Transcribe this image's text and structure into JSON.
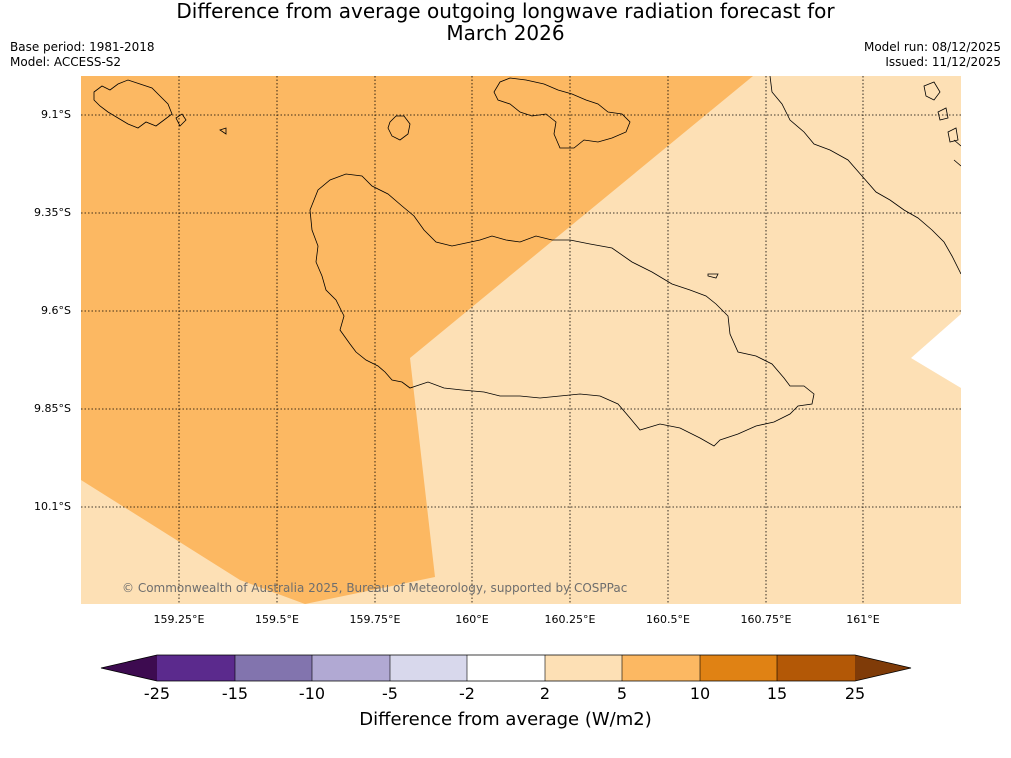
{
  "header": {
    "title_line1": "Difference from average outgoing longwave radiation forecast for",
    "title_line2": "March 2026",
    "base_period": "Base period: 1981-2018",
    "model": "Model: ACCESS-S2",
    "model_run": "Model run: 08/12/2025",
    "issued": "Issued: 11/12/2025"
  },
  "map": {
    "lat_labels": [
      "9.1°S",
      "9.35°S",
      "9.6°S",
      "9.85°S",
      "10.1°S"
    ],
    "lon_labels": [
      "159.25°E",
      "159.5°E",
      "159.75°E",
      "160°E",
      "160.25°E",
      "160.5°E",
      "160.75°E",
      "161°E"
    ],
    "credit": "© Commonwealth of Australia 2025, Bureau of Meteorology, supported by COSPPac",
    "colors": {
      "band_5_10": "#fcb862",
      "band_2_5": "#fde0b5",
      "band_neg2_2": "#ffffff",
      "coastline": "#000000"
    }
  },
  "colorbar": {
    "title": "Difference from average (W/m2)",
    "tick_labels": [
      "-25",
      "-15",
      "-10",
      "-5",
      "-2",
      "2",
      "5",
      "10",
      "15",
      "25"
    ],
    "colors": [
      "#3d0b50",
      "#5b2a8d",
      "#8274ae",
      "#b1a9d3",
      "#d8d8ec",
      "#ffffff",
      "#fde0b5",
      "#fcb862",
      "#e08214",
      "#b35806",
      "#7f3b08"
    ]
  }
}
